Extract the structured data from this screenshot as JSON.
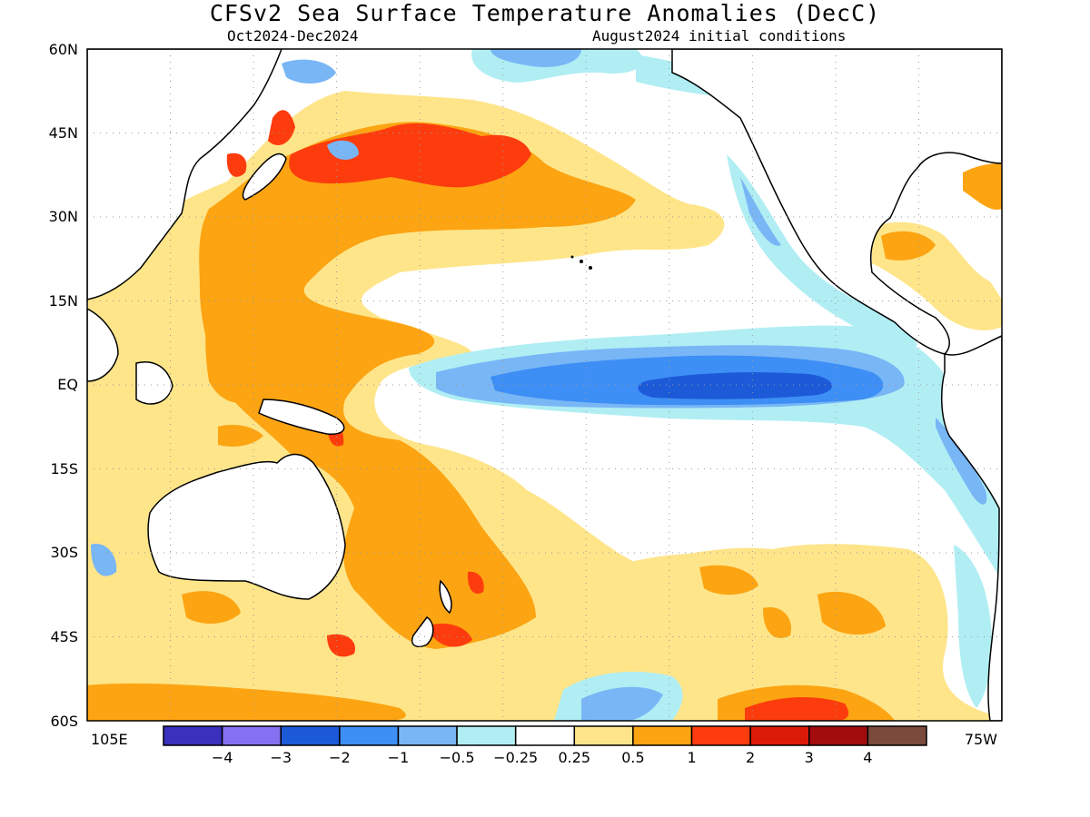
{
  "title": "CFSv2 Sea Surface Temperature Anomalies (DecC)",
  "subtitle_left": "Oct2024-Dec2024",
  "subtitle_right": "August2024 initial conditions",
  "map": {
    "lat_ticks": [
      "60N",
      "45N",
      "30N",
      "15N",
      "EQ",
      "15S",
      "30S",
      "45S",
      "60S"
    ],
    "lon_left": "105E",
    "lon_right": "75W",
    "grid": true
  },
  "legend": {
    "colors": [
      "#3b2fbd",
      "#8470f0",
      "#1c5ad8",
      "#3d8ef5",
      "#78b6f6",
      "#b0eef4",
      "#ffffff",
      "#fee58a",
      "#fca412",
      "#fd3c0d",
      "#dc1a08",
      "#a20c0c",
      "#7a4a3c"
    ],
    "labels": [
      "-4",
      "-3",
      "-2",
      "-1",
      "-0.5",
      "-0.25",
      "0.25",
      "0.5",
      "1",
      "2",
      "3",
      "4"
    ]
  },
  "colors": {
    "land": "#ffffff",
    "coast": "#000000",
    "neutral": "#ffffff"
  }
}
